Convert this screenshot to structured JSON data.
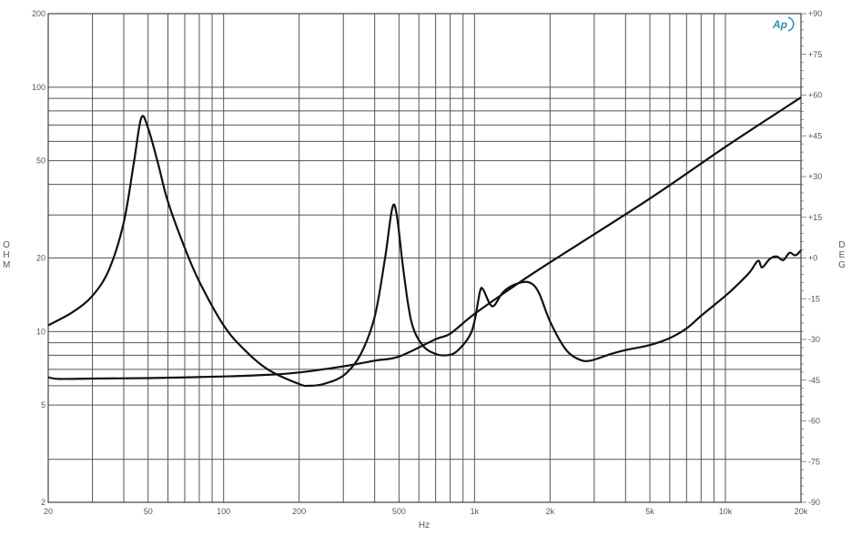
{
  "chart_data": {
    "type": "line",
    "title": "",
    "xlabel": "Hz",
    "ylabel": "OHM",
    "y2label": "DEG",
    "x_scale": "log",
    "y_scale": "log",
    "xlim": [
      20,
      20000
    ],
    "ylim": [
      2,
      200
    ],
    "y2lim": [
      -90,
      90
    ],
    "grid": true,
    "logo_text": "Ap",
    "logo_color": "#2a8fb8",
    "line_color": "#111111",
    "grid_color": "#555555",
    "x_ticks": [
      {
        "v": 20,
        "label": "20"
      },
      {
        "v": 50,
        "label": "50"
      },
      {
        "v": 100,
        "label": "100"
      },
      {
        "v": 200,
        "label": "200"
      },
      {
        "v": 500,
        "label": "500"
      },
      {
        "v": 1000,
        "label": "1k"
      },
      {
        "v": 2000,
        "label": "2k"
      },
      {
        "v": 5000,
        "label": "5k"
      },
      {
        "v": 10000,
        "label": "10k"
      },
      {
        "v": 20000,
        "label": "20k"
      }
    ],
    "x_grid": [
      20,
      30,
      40,
      50,
      60,
      70,
      80,
      90,
      100,
      200,
      300,
      400,
      500,
      600,
      700,
      800,
      900,
      1000,
      2000,
      3000,
      4000,
      5000,
      6000,
      7000,
      8000,
      9000,
      10000,
      20000
    ],
    "y_ticks": [
      {
        "v": 200,
        "label": "200"
      },
      {
        "v": 100,
        "label": "100"
      },
      {
        "v": 50,
        "label": "50"
      },
      {
        "v": 20,
        "label": "20"
      },
      {
        "v": 10,
        "label": "10"
      },
      {
        "v": 5,
        "label": "5"
      },
      {
        "v": 2,
        "label": "2"
      }
    ],
    "y_grid": [
      2,
      3,
      5,
      6,
      7,
      8,
      9,
      10,
      20,
      30,
      40,
      50,
      60,
      70,
      80,
      90,
      100,
      200
    ],
    "y2_ticks": [
      {
        "v": 90,
        "label": "+90"
      },
      {
        "v": 75,
        "label": "+75"
      },
      {
        "v": 60,
        "label": "+60"
      },
      {
        "v": 45,
        "label": "+45"
      },
      {
        "v": 30,
        "label": "+30"
      },
      {
        "v": 15,
        "label": "+15"
      },
      {
        "v": 0,
        "label": "+0"
      },
      {
        "v": -15,
        "label": "-15"
      },
      {
        "v": -30,
        "label": "-30"
      },
      {
        "v": -45,
        "label": "-45"
      },
      {
        "v": -60,
        "label": "-60"
      },
      {
        "v": -75,
        "label": "-75"
      },
      {
        "v": -90,
        "label": "-90"
      }
    ],
    "series": [
      {
        "axis": "left",
        "x": [
          20,
          25,
          30,
          35,
          40,
          44,
          47,
          50,
          55,
          60,
          70,
          80,
          100,
          120,
          150,
          200,
          220,
          250,
          300,
          350,
          400,
          440,
          470,
          490,
          520,
          560,
          620,
          700,
          780,
          850,
          950,
          1000,
          1050,
          1080,
          1150,
          1200,
          1300,
          1450,
          1650,
          1800,
          2000,
          2300,
          2600,
          2900,
          3500,
          4000,
          5000,
          6000,
          7000,
          8000,
          9000,
          10000,
          11000,
          12500,
          13500,
          14000,
          15000,
          16000,
          17000,
          18000,
          19000,
          20000
        ],
        "y": [
          10.6,
          12,
          14,
          18,
          28,
          50,
          75,
          68,
          48,
          34,
          22,
          16,
          10.6,
          8.5,
          7,
          6.1,
          6.0,
          6.1,
          6.6,
          8,
          11.5,
          20,
          32,
          30,
          18,
          11,
          8.8,
          8.1,
          8.0,
          8.3,
          9.5,
          11,
          14.5,
          14.9,
          13,
          12.8,
          14.5,
          15.6,
          15.9,
          14.5,
          11,
          8.5,
          7.7,
          7.6,
          8.1,
          8.4,
          8.8,
          9.4,
          10.3,
          11.6,
          12.8,
          14,
          15.3,
          17.5,
          19.5,
          18.3,
          19.8,
          20.3,
          19.6,
          21,
          20.5,
          21.5
        ]
      },
      {
        "axis": "left",
        "x": [
          20,
          22,
          30,
          50,
          100,
          150,
          200,
          300,
          400,
          500,
          700,
          800,
          1000,
          1500,
          2000,
          5000,
          10000,
          20000
        ],
        "y": [
          6.5,
          6.4,
          6.42,
          6.45,
          6.55,
          6.65,
          6.8,
          7.2,
          7.6,
          7.9,
          9.3,
          9.8,
          11.8,
          15.8,
          19.2,
          35,
          57,
          90.8
        ]
      }
    ]
  }
}
